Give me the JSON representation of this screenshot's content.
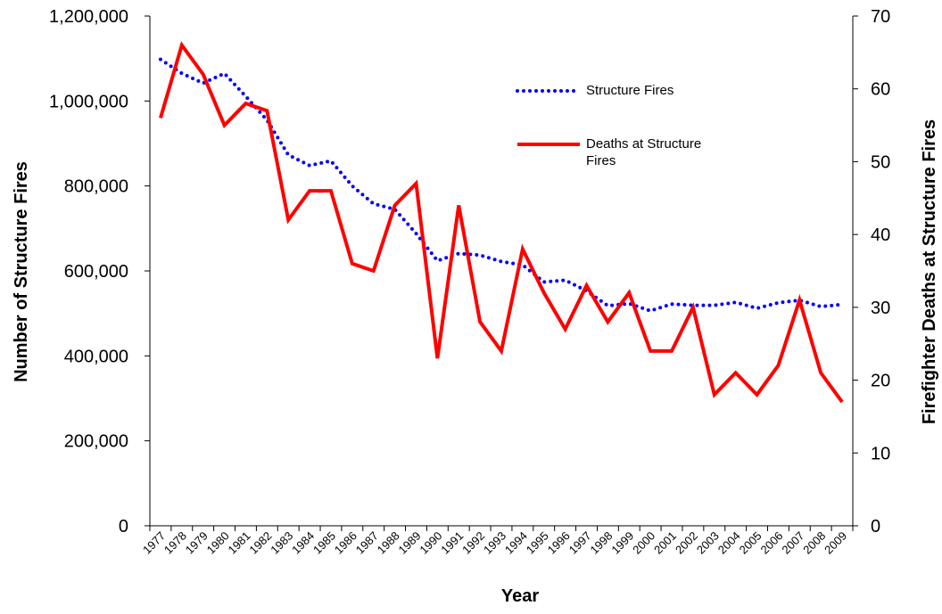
{
  "chart_data": {
    "type": "line",
    "x_label": "Year",
    "y_label": "Number of Structure Fires",
    "y2_label": "Firefighter Deaths at Structure Fires",
    "categories": [
      "1977",
      "1978",
      "1979",
      "1980",
      "1981",
      "1982",
      "1983",
      "1984",
      "1985",
      "1986",
      "1987",
      "1988",
      "1989",
      "1990",
      "1991",
      "1992",
      "1993",
      "1994",
      "1995",
      "1996",
      "1997",
      "1998",
      "1999",
      "2000",
      "2001",
      "2002",
      "2003",
      "2004",
      "2005",
      "2006",
      "2007",
      "2008",
      "2009"
    ],
    "series": [
      {
        "name": "Structure Fires",
        "color": "#0000ff",
        "style": "dotted",
        "axis": "y",
        "values": [
          1098000,
          1065000,
          1042000,
          1065000,
          1011000,
          955000,
          873000,
          848000,
          859000,
          800000,
          758000,
          745000,
          688000,
          624000,
          641000,
          637000,
          622000,
          614000,
          574000,
          578000,
          553000,
          518000,
          523000,
          506000,
          522000,
          519000,
          519000,
          526000,
          512000,
          525000,
          531000,
          516000,
          521000
        ]
      },
      {
        "name": "Deaths at Structure Fires",
        "color": "#ff0000",
        "style": "solid",
        "axis": "y2",
        "values": [
          56,
          66,
          62,
          55,
          58,
          57,
          42,
          46,
          46,
          36,
          35,
          44,
          47,
          23,
          44,
          28,
          24,
          38,
          32,
          27,
          33,
          28,
          32,
          24,
          24,
          30,
          18,
          21,
          18,
          22,
          31,
          21,
          17
        ]
      }
    ],
    "ylim": [
      0,
      1200000
    ],
    "yticks": [
      0,
      {
        "value": 200000,
        "label": "200,000"
      },
      {
        "value": 400000,
        "label": "400,000"
      },
      {
        "value": 600000,
        "label": "600,000"
      },
      {
        "value": 800000,
        "label": "800,000"
      },
      {
        "value": 1000000,
        "label": "1,000,000"
      },
      {
        "value": 1200000,
        "label": "1,200,000"
      }
    ],
    "y2lim": [
      0,
      70
    ],
    "y2ticks": [
      0,
      10,
      20,
      30,
      40,
      50,
      60,
      70
    ],
    "grid": false
  }
}
